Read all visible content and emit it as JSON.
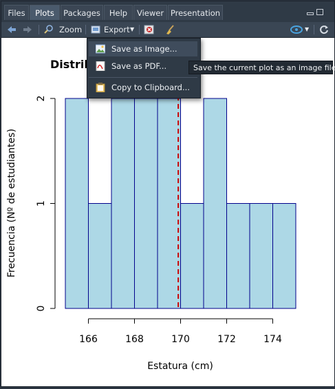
{
  "tabs": [
    {
      "label": "Files",
      "active": false
    },
    {
      "label": "Plots",
      "active": true
    },
    {
      "label": "Packages",
      "active": false
    },
    {
      "label": "Help",
      "active": false
    },
    {
      "label": "Viewer",
      "active": false
    },
    {
      "label": "Presentation",
      "active": false
    }
  ],
  "toolbar": {
    "back_icon": "arrow-left-icon",
    "forward_icon": "arrow-right-icon",
    "zoom_label": "Zoom",
    "export_label": "Export",
    "remove_icon": "remove-plot-icon",
    "clear_icon": "broom-icon",
    "publish_icon": "publish-icon",
    "refresh_icon": "refresh-icon"
  },
  "export_menu": {
    "items": [
      {
        "label": "Save as Image...",
        "icon": "image-icon",
        "highlighted": true
      },
      {
        "label": "Save as PDF...",
        "icon": "pdf-icon",
        "highlighted": false
      },
      {
        "label": "Copy to Clipboard...",
        "icon": "clipboard-icon",
        "highlighted": false
      }
    ]
  },
  "tooltip": "Save the current plot as an image file",
  "chart_data": {
    "type": "bar",
    "title": "Distrib",
    "xlabel": "Estatura (cm)",
    "ylabel": "Frecuencia (Nº de estudiantes)",
    "bins": [
      {
        "from": 165,
        "to": 166,
        "count": 2
      },
      {
        "from": 166,
        "to": 167,
        "count": 1
      },
      {
        "from": 167,
        "to": 168,
        "count": 2
      },
      {
        "from": 168,
        "to": 169,
        "count": 2
      },
      {
        "from": 169,
        "to": 170,
        "count": 2
      },
      {
        "from": 170,
        "to": 171,
        "count": 1
      },
      {
        "from": 171,
        "to": 172,
        "count": 2
      },
      {
        "from": 172,
        "to": 173,
        "count": 1
      },
      {
        "from": 173,
        "to": 174,
        "count": 1
      },
      {
        "from": 174,
        "to": 175,
        "count": 1
      }
    ],
    "xticks": [
      166,
      168,
      170,
      172,
      174
    ],
    "yticks": [
      0,
      1,
      2
    ],
    "xlim": [
      165,
      175
    ],
    "ylim": [
      0,
      2
    ],
    "mean_line": 169.9,
    "colors": {
      "fill": "#add8e6",
      "stroke": "#00008b",
      "mean_line": "#cc0000"
    }
  }
}
